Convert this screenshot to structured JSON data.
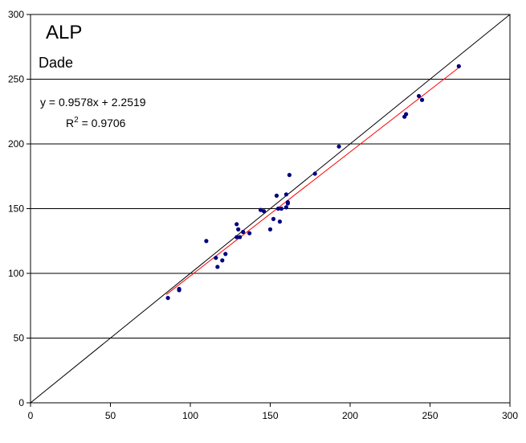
{
  "chart_data": {
    "type": "scatter",
    "title": "ALP",
    "subtitle": "Dade",
    "xlabel": "",
    "ylabel": "",
    "xlim": [
      0,
      300
    ],
    "ylim": [
      0,
      300
    ],
    "x_ticks": [
      0,
      50,
      100,
      150,
      200,
      250,
      300
    ],
    "y_ticks": [
      0,
      50,
      100,
      150,
      200,
      250,
      300
    ],
    "grid": "horizontal",
    "legend": "none",
    "colors": {
      "points": "#000080",
      "trendline": "#ff0000",
      "identity_line": "#000000",
      "gridlines": "#000000",
      "border": "#000000"
    },
    "equation_text": "y = 0.9578x + 2.2519",
    "r2_label": "R",
    "r2_exp": "2",
    "r2_value": " = 0.9706",
    "trendline": {
      "slope": 0.9578,
      "intercept": 2.2519,
      "x_range": [
        85,
        268
      ]
    },
    "identity_line": {
      "from": [
        0,
        0
      ],
      "to": [
        300,
        300
      ]
    },
    "series": [
      {
        "x": [
          86,
          93,
          93,
          110,
          116,
          117,
          120,
          122,
          129,
          129,
          130,
          131,
          133,
          137,
          144,
          146,
          150,
          152,
          154,
          155,
          156,
          157,
          160,
          160,
          161,
          161,
          162,
          178,
          193,
          234,
          235,
          243,
          245,
          268
        ],
        "y": [
          81,
          87,
          88,
          125,
          112,
          105,
          110,
          115,
          128,
          138,
          134,
          128,
          132,
          131,
          149,
          148,
          134,
          142,
          160,
          150,
          140,
          150,
          151,
          161,
          154,
          155,
          176,
          177,
          198,
          221,
          223,
          237,
          234,
          260
        ]
      }
    ]
  }
}
